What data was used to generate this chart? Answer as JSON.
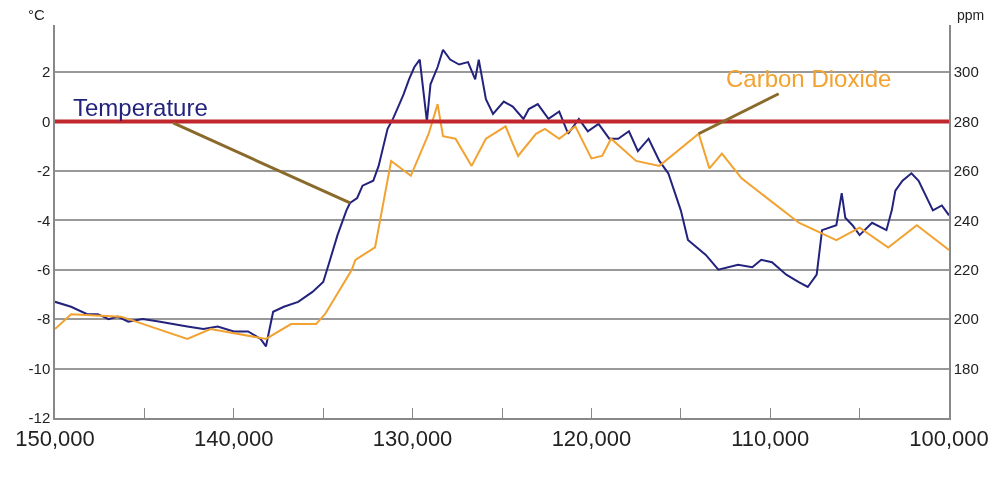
{
  "chart_data": {
    "type": "line",
    "ylabel": "°C",
    "y2label": "ppm",
    "xlim": [
      150000,
      100000
    ],
    "xticks": [
      {
        "value": 150000,
        "label": "150,000"
      },
      {
        "value": 145000,
        "label": null
      },
      {
        "value": 140000,
        "label": "140,000"
      },
      {
        "value": 135000,
        "label": null
      },
      {
        "value": 130000,
        "label": "130,000"
      },
      {
        "value": 125000,
        "label": null
      },
      {
        "value": 120000,
        "label": "120,000"
      },
      {
        "value": 115000,
        "label": null
      },
      {
        "value": 110000,
        "label": "110,000"
      },
      {
        "value": 105000,
        "label": null
      },
      {
        "value": 100000,
        "label": "100,000"
      }
    ],
    "ylim": [
      -12,
      3.9
    ],
    "yticks": [
      -12,
      -10,
      -8,
      -6,
      -4,
      -2,
      0,
      2
    ],
    "y2lim": [
      160,
      319
    ],
    "y2ticks": [
      180,
      200,
      220,
      240,
      260,
      280,
      300
    ],
    "grid": "y",
    "line_style": "solid",
    "marker": "none",
    "series": [
      {
        "color": "#23237e",
        "x": [
          150000,
          149100,
          148200,
          147600,
          147000,
          146500,
          145900,
          145100,
          144200,
          143400,
          142600,
          141700,
          140900,
          140000,
          139200,
          138500,
          138200,
          137800,
          137200,
          136400,
          135600,
          135000,
          134700,
          134200,
          133700,
          133500,
          133100,
          132800,
          132200,
          131900,
          131400,
          131100,
          130800,
          130500,
          130200,
          129900,
          129600,
          129200,
          129000,
          128600,
          128300,
          127900,
          127400,
          126900,
          126500,
          126300,
          125900,
          125500,
          124900,
          124400,
          123800,
          123500,
          123000,
          122400,
          121800,
          121300,
          120700,
          120200,
          119600,
          119000,
          118500,
          117900,
          117400,
          116800,
          116200,
          115700,
          115000,
          114600,
          113600,
          112900,
          111800,
          111000,
          110500,
          109900,
          109100,
          108400,
          107900,
          107400,
          107100,
          106300,
          106000,
          105800,
          105400,
          105000,
          104300,
          103500,
          103200,
          103000,
          102600,
          102100,
          101700,
          100900,
          100400,
          100000
        ],
        "values": [
          -7.3,
          -7.5,
          -7.8,
          -7.8,
          -8.0,
          -7.9,
          -8.1,
          -8.0,
          -8.1,
          -8.2,
          -8.3,
          -8.4,
          -8.3,
          -8.5,
          -8.5,
          -8.8,
          -9.1,
          -7.7,
          -7.5,
          -7.3,
          -6.9,
          -6.5,
          -5.8,
          -4.6,
          -3.6,
          -3.3,
          -3.1,
          -2.6,
          -2.4,
          -1.8,
          -0.3,
          0.1,
          0.6,
          1.1,
          1.7,
          2.2,
          2.5,
          0.0,
          1.5,
          2.2,
          2.9,
          2.5,
          2.3,
          2.4,
          1.7,
          2.5,
          0.9,
          0.3,
          0.8,
          0.6,
          0.1,
          0.5,
          0.7,
          0.1,
          0.4,
          -0.5,
          0.1,
          -0.4,
          -0.1,
          -0.7,
          -0.7,
          -0.4,
          -1.2,
          -0.7,
          -1.6,
          -2.1,
          -3.6,
          -4.8,
          -5.4,
          -6.0,
          -5.8,
          -5.9,
          -5.6,
          -5.7,
          -6.2,
          -6.5,
          -6.7,
          -6.2,
          -4.4,
          -4.2,
          -2.9,
          -3.9,
          -4.2,
          -4.6,
          -4.1,
          -4.4,
          -3.6,
          -2.8,
          -2.4,
          -2.1,
          -2.4,
          -3.6,
          -3.4,
          -3.8
        ]
      },
      {
        "color": "#f2a230",
        "axis": "y2",
        "x": [
          150000,
          149100,
          146300,
          142600,
          141300,
          138200,
          136800,
          135400,
          134900,
          133400,
          133200,
          132100,
          131200,
          130100,
          129100,
          128600,
          128300,
          127600,
          126700,
          125900,
          124800,
          124400,
          124100,
          123100,
          122600,
          121800,
          120900,
          120000,
          119400,
          118900,
          117500,
          116200,
          114000,
          113400,
          112700,
          111600,
          108400,
          106300,
          105000,
          103400,
          101800,
          100000
        ],
        "values": [
          196,
          202,
          201,
          192,
          196,
          192,
          198,
          198,
          202,
          220,
          224,
          229,
          264,
          258,
          275,
          287,
          274,
          273,
          262,
          273,
          278,
          271,
          266,
          275,
          277,
          273,
          278,
          265,
          266,
          273,
          264,
          262,
          275,
          261,
          267,
          257,
          239,
          232,
          237,
          229,
          238,
          228
        ]
      }
    ],
    "ref_lines": [
      {
        "axis": "y",
        "value": 0,
        "color": "#c0282d"
      }
    ],
    "annotations": [
      {
        "text": "Temperature",
        "x": 133500,
        "y": -3.3
      },
      {
        "text": "Carbon Dioxide",
        "x": 114000,
        "y": -0.5
      }
    ]
  }
}
